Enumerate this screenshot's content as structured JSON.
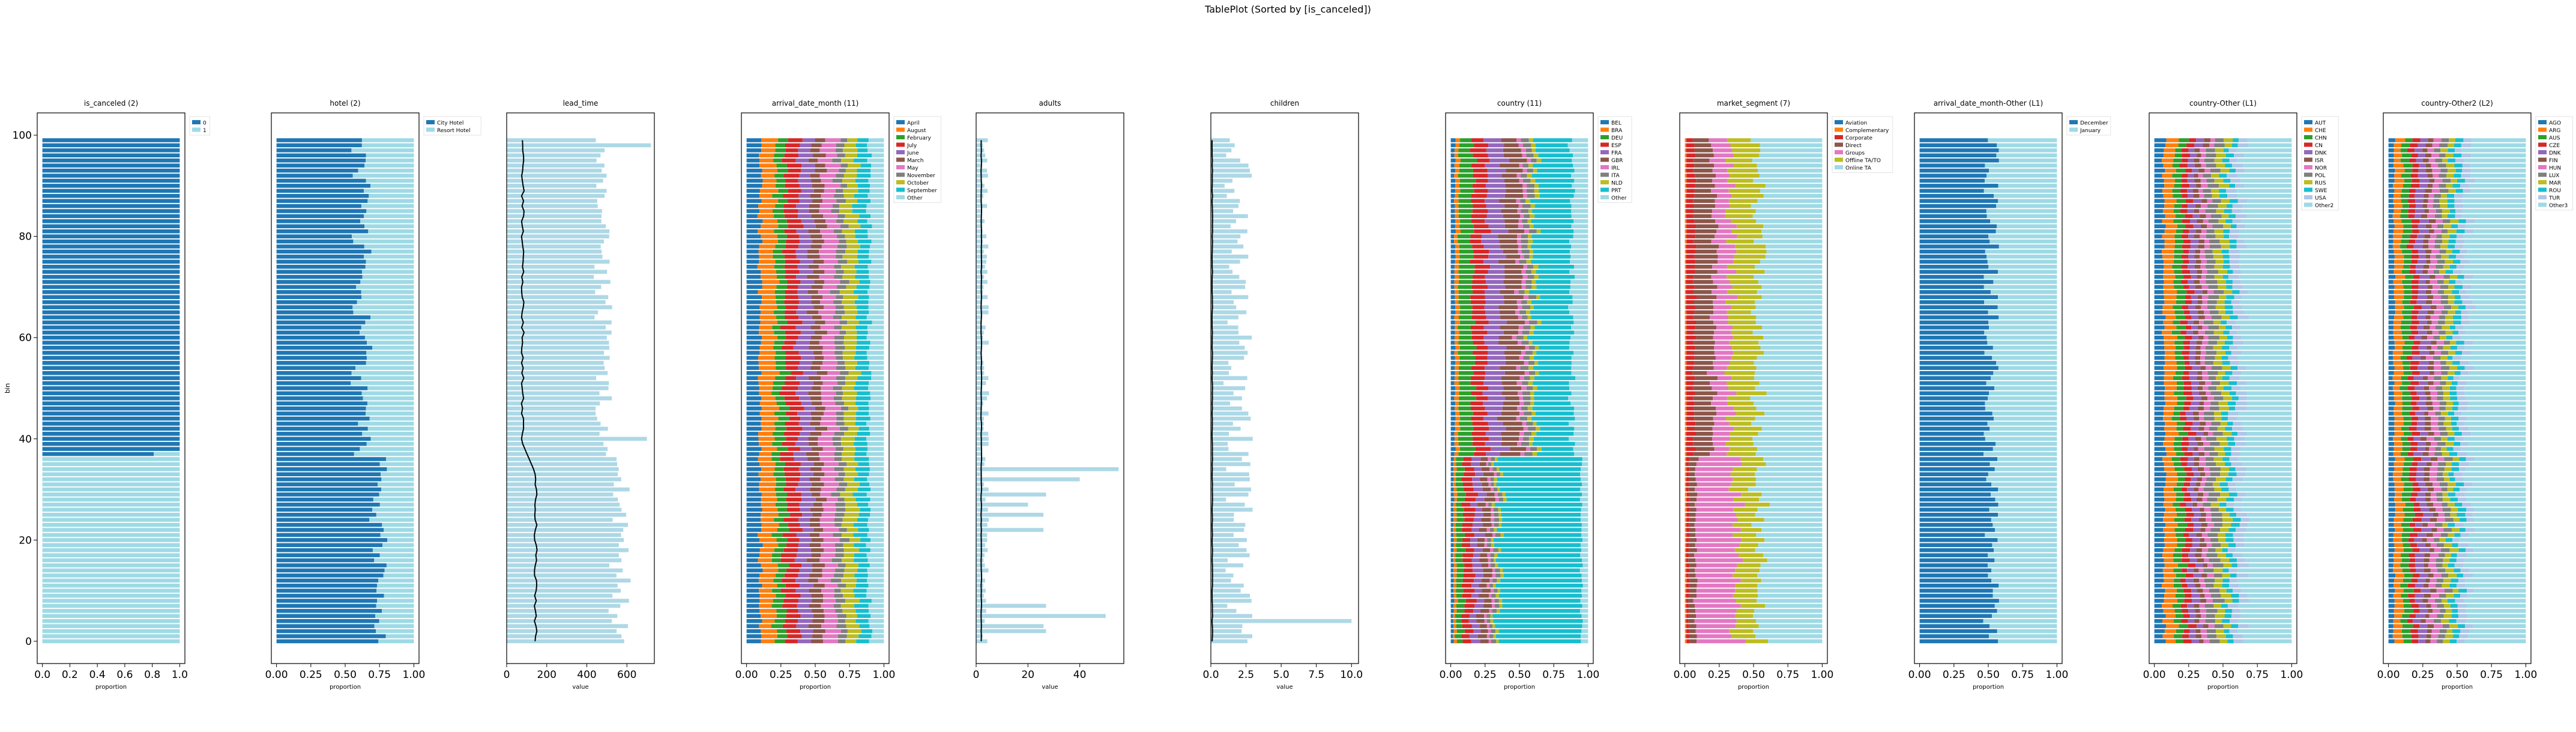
{
  "chart_data": {
    "type": "tableplot",
    "title": "TablePlot (Sorted by [is_canceled])",
    "ylabel": "bin",
    "n_bins": 100,
    "panels": [
      {
        "title": "is_canceled (2)",
        "kind": "categorical",
        "xlabel": "proportion",
        "legend": [
          "0",
          "1"
        ],
        "colors": [
          "#1f77b4",
          "#9edae5"
        ],
        "xlim": [
          0,
          1
        ],
        "xticks": [
          "0.0",
          "0.2",
          "0.4",
          "0.6",
          "0.8",
          "1.0"
        ],
        "segments": [
          {
            "bins": "0-36",
            "proportions": [
              0.0,
              1.0
            ]
          },
          {
            "bins": "37",
            "proportions": [
              0.83,
              0.17
            ]
          },
          {
            "bins": "38-99",
            "proportions": [
              1.0,
              0.0
            ]
          }
        ]
      },
      {
        "title": "hotel (2)",
        "kind": "categorical",
        "xlabel": "proportion",
        "legend": [
          "City Hotel",
          "Resort Hotel"
        ],
        "colors": [
          "#1f77b4",
          "#9edae5"
        ],
        "xlim": [
          0,
          1
        ],
        "xticks": [
          "0.00",
          "0.25",
          "0.50",
          "0.75",
          "1.00"
        ],
        "segments": [
          {
            "bins": "0-36",
            "proportions": [
              0.75,
              0.25
            ]
          },
          {
            "bins": "37-99",
            "proportions": [
              0.62,
              0.38
            ]
          }
        ]
      },
      {
        "title": "lead_time",
        "kind": "numeric",
        "xlabel": "value",
        "xlim": [
          0,
          737
        ],
        "xticks": [
          "0",
          "200",
          "400",
          "600"
        ],
        "mean_line": [
          {
            "bins": "0-36",
            "value": 145
          },
          {
            "bins": "37-99",
            "value": 80
          }
        ],
        "bar_max": [
          {
            "bins": "0-36",
            "value": 620
          },
          {
            "bins": "37-99",
            "value": 530
          }
        ],
        "peaks": [
          {
            "bin": 98,
            "value": 720
          },
          {
            "bin": 40,
            "value": 700
          }
        ]
      },
      {
        "title": "arrival_date_month (11)",
        "kind": "categorical",
        "xlabel": "proportion",
        "legend": [
          "April",
          "August",
          "February",
          "July",
          "June",
          "March",
          "May",
          "November",
          "October",
          "September",
          "Other"
        ],
        "colors": [
          "#1f77b4",
          "#ff7f0e",
          "#2ca02c",
          "#d62728",
          "#9467bd",
          "#8c564b",
          "#e377c2",
          "#7f7f7f",
          "#bcbd22",
          "#17becf",
          "#9edae5"
        ],
        "xlim": [
          0,
          1
        ],
        "xticks": [
          "0.00",
          "0.25",
          "0.50",
          "0.75",
          "1.00"
        ],
        "proportions": [
          0.1,
          0.11,
          0.07,
          0.1,
          0.09,
          0.08,
          0.1,
          0.06,
          0.09,
          0.09,
          0.11
        ]
      },
      {
        "title": "adults",
        "kind": "numeric",
        "xlabel": "value",
        "xlim": [
          0,
          57
        ],
        "xticks": [
          "0",
          "20",
          "40"
        ],
        "mean_line_value": 2,
        "peaks": [
          {
            "bin": 34,
            "value": 55
          },
          {
            "bin": 32,
            "value": 40
          },
          {
            "bin": 5,
            "value": 50
          },
          {
            "bin": 7,
            "value": 27
          },
          {
            "bin": 29,
            "value": 27
          },
          {
            "bin": 25,
            "value": 26
          },
          {
            "bin": 27,
            "value": 20
          },
          {
            "bin": 22,
            "value": 26
          },
          {
            "bin": 2,
            "value": 27
          },
          {
            "bin": 3,
            "value": 26
          }
        ]
      },
      {
        "title": "children",
        "kind": "numeric",
        "xlabel": "value",
        "xlim": [
          0,
          10.5
        ],
        "xticks": [
          "0.0",
          "2.5",
          "5.0",
          "7.5",
          "10.0"
        ],
        "mean_line_value": 0.1,
        "bar_max_value": 3,
        "peaks": [
          {
            "bin": 4,
            "value": 10
          }
        ]
      },
      {
        "title": "country (11)",
        "kind": "categorical",
        "xlabel": "proportion",
        "legend": [
          "BEL",
          "BRA",
          "DEU",
          "ESP",
          "FRA",
          "GBR",
          "IRL",
          "ITA",
          "NLD",
          "PRT",
          "Other"
        ],
        "colors": [
          "#1f77b4",
          "#ff7f0e",
          "#2ca02c",
          "#d62728",
          "#9467bd",
          "#8c564b",
          "#e377c2",
          "#7f7f7f",
          "#bcbd22",
          "#17becf",
          "#9edae5"
        ],
        "xlim": [
          0,
          1
        ],
        "xticks": [
          "0.00",
          "0.25",
          "0.50",
          "0.75",
          "1.00"
        ],
        "segments": [
          {
            "bins": "0-36",
            "proportions": [
              0.02,
              0.02,
              0.05,
              0.07,
              0.06,
              0.06,
              0.02,
              0.03,
              0.02,
              0.6,
              0.05
            ]
          },
          {
            "bins": "37-99",
            "proportions": [
              0.03,
              0.03,
              0.1,
              0.1,
              0.12,
              0.12,
              0.03,
              0.05,
              0.03,
              0.27,
              0.12
            ]
          }
        ]
      },
      {
        "title": "market_segment (7)",
        "kind": "categorical",
        "xlabel": "proportion",
        "legend": [
          "Aviation",
          "Complementary",
          "Corporate",
          "Direct",
          "Groups",
          "Offline TA/TO",
          "Online TA"
        ],
        "colors": [
          "#1f77b4",
          "#ff7f0e",
          "#d62728",
          "#8c564b",
          "#e377c2",
          "#bcbd22",
          "#9edae5"
        ],
        "xlim": [
          0,
          1
        ],
        "xticks": [
          "0.00",
          "0.25",
          "0.50",
          "0.75",
          "1.00"
        ],
        "segments": [
          {
            "bins": "0-36",
            "proportions": [
              0.0,
              0.01,
              0.02,
              0.05,
              0.3,
              0.16,
              0.46
            ]
          },
          {
            "bins": "37-99",
            "proportions": [
              0.0,
              0.01,
              0.06,
              0.14,
              0.12,
              0.2,
              0.47
            ]
          }
        ]
      },
      {
        "title": "arrival_date_month-Other (L1)",
        "kind": "categorical",
        "xlabel": "proportion",
        "legend": [
          "December",
          "January"
        ],
        "colors": [
          "#1f77b4",
          "#9edae5"
        ],
        "xlim": [
          0,
          1
        ],
        "xticks": [
          "0.00",
          "0.25",
          "0.50",
          "0.75",
          "1.00"
        ],
        "proportions": [
          0.52,
          0.48
        ]
      },
      {
        "title": "country-Other (L1)",
        "kind": "categorical",
        "xlabel": "proportion",
        "legend": [
          "AUT",
          "CHE",
          "CHN",
          "CN",
          "DNK",
          "ISR",
          "NOR",
          "POL",
          "RUS",
          "SWE",
          "USA",
          "Other2"
        ],
        "colors": [
          "#1f77b4",
          "#ff7f0e",
          "#2ca02c",
          "#d62728",
          "#9467bd",
          "#8c564b",
          "#e377c2",
          "#7f7f7f",
          "#bcbd22",
          "#17becf",
          "#aec7e8",
          "#9edae5"
        ],
        "xlim": [
          0,
          1
        ],
        "xticks": [
          "0.00",
          "0.25",
          "0.50",
          "0.75",
          "1.00"
        ],
        "proportions": [
          0.07,
          0.08,
          0.06,
          0.05,
          0.05,
          0.04,
          0.04,
          0.07,
          0.06,
          0.05,
          0.07,
          0.36
        ]
      },
      {
        "title": "country-Other2 (L2)",
        "kind": "categorical",
        "xlabel": "proportion",
        "legend": [
          "AGO",
          "ARG",
          "AUS",
          "CZE",
          "DNK",
          "FIN",
          "HUN",
          "LUX",
          "MAR",
          "ROU",
          "TUR",
          "Other3"
        ],
        "colors": [
          "#1f77b4",
          "#ff7f0e",
          "#2ca02c",
          "#d62728",
          "#9467bd",
          "#8c564b",
          "#e377c2",
          "#7f7f7f",
          "#bcbd22",
          "#17becf",
          "#aec7e8",
          "#9edae5"
        ],
        "xlim": [
          0,
          1
        ],
        "xticks": [
          "0.00",
          "0.25",
          "0.50",
          "0.75",
          "1.00"
        ],
        "proportions": [
          0.04,
          0.06,
          0.06,
          0.05,
          0.06,
          0.04,
          0.05,
          0.05,
          0.05,
          0.05,
          0.06,
          0.43
        ]
      }
    ],
    "yticks": [
      "0",
      "20",
      "40",
      "60",
      "80",
      "100"
    ]
  }
}
